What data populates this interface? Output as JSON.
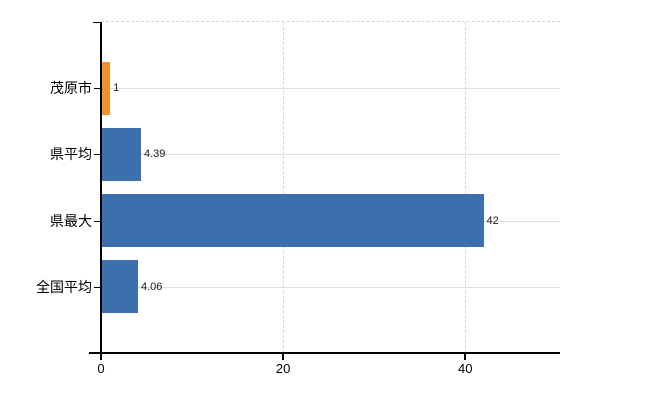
{
  "chart_data": {
    "type": "bar",
    "orientation": "horizontal",
    "title": "",
    "xlabel": "",
    "ylabel": "",
    "categories": [
      "茂原市",
      "県平均",
      "県最大",
      "全国平均"
    ],
    "values": [
      1,
      4.39,
      42,
      4.06
    ],
    "value_labels": [
      "1",
      "4.39",
      "42",
      "4.06"
    ],
    "bar_colors": [
      "#f0912d",
      "#3d6fad",
      "#3d6fad",
      "#3d6fad"
    ],
    "xlim": [
      0,
      50.4
    ],
    "x_ticks": [
      0,
      20,
      40
    ],
    "x_tick_labels": [
      "0",
      "20",
      "40"
    ],
    "grid": true,
    "legend": false,
    "annotations": []
  },
  "colors": {
    "background": "#ffffff",
    "bar_default": "#3d6fad",
    "bar_highlight": "#f0912d",
    "grid_solid": "#dbe2db",
    "grid_dashed": "#d6d6d6",
    "axis": "#000000",
    "text": "#000000",
    "value_text": "#1a1a1a"
  }
}
